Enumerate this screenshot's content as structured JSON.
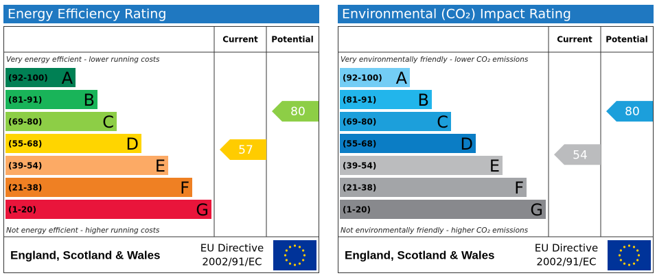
{
  "panels": [
    {
      "title": "Energy Efficiency Rating",
      "headers": [
        "Current",
        "Potential"
      ],
      "top_note": "Very energy efficient - lower running costs",
      "bottom_note": "Not energy efficient - higher running costs",
      "bands": [
        {
          "range": "(92-100)",
          "letter": "A",
          "color": "#008054"
        },
        {
          "range": "(81-91)",
          "letter": "B",
          "color": "#19b459"
        },
        {
          "range": "(69-80)",
          "letter": "C",
          "color": "#8dce46"
        },
        {
          "range": "(55-68)",
          "letter": "D",
          "color": "#ffd500"
        },
        {
          "range": "(39-54)",
          "letter": "E",
          "color": "#fcaa65"
        },
        {
          "range": "(21-38)",
          "letter": "F",
          "color": "#ef8023"
        },
        {
          "range": "(1-20)",
          "letter": "G",
          "color": "#e9153b"
        }
      ],
      "current": {
        "value": 57,
        "color": "#ffcc00"
      },
      "potential": {
        "value": 80,
        "color": "#8dce46"
      },
      "footer": {
        "region": "England, Scotland & Wales",
        "directive": [
          "EU Directive",
          "2002/91/EC"
        ]
      }
    },
    {
      "title": "Environmental (CO₂) Impact Rating",
      "headers": [
        "Current",
        "Potential"
      ],
      "top_note": "Very environmentally friendly - lower CO₂ emissions",
      "bottom_note": "Not environmentally friendly - higher CO₂ emissions",
      "bands": [
        {
          "range": "(92-100)",
          "letter": "A",
          "color": "#73cdf5"
        },
        {
          "range": "(81-91)",
          "letter": "B",
          "color": "#22b5eb"
        },
        {
          "range": "(69-80)",
          "letter": "C",
          "color": "#1c9fdb"
        },
        {
          "range": "(55-68)",
          "letter": "D",
          "color": "#0b7dc5"
        },
        {
          "range": "(39-54)",
          "letter": "E",
          "color": "#bbbcbe"
        },
        {
          "range": "(21-38)",
          "letter": "F",
          "color": "#a3a5a8"
        },
        {
          "range": "(1-20)",
          "letter": "G",
          "color": "#88898d"
        }
      ],
      "current": {
        "value": 54,
        "color": "#bbbcbe"
      },
      "potential": {
        "value": 80,
        "color": "#1c9fdb"
      },
      "footer": {
        "region": "England, Scotland & Wales",
        "directive": [
          "EU Directive",
          "2002/91/EC"
        ]
      }
    }
  ]
}
